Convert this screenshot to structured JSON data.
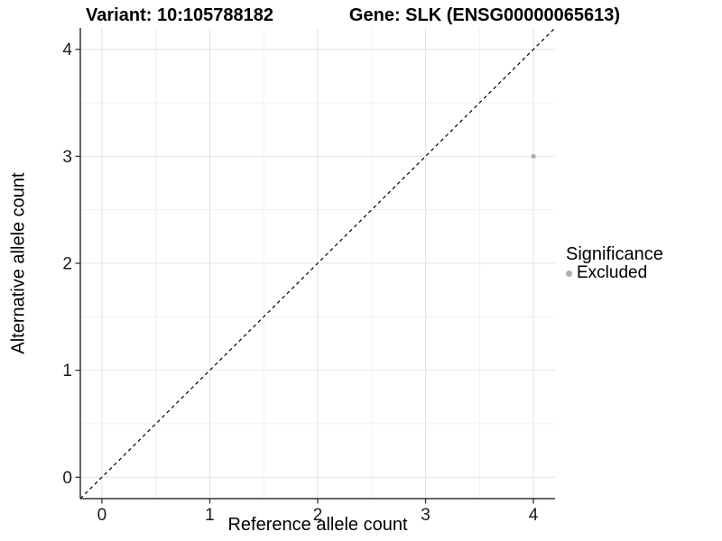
{
  "figure": {
    "title_left": "Variant: 10:105788182",
    "title_right": "Gene: SLK (ENSG00000065613)"
  },
  "chart_data": {
    "type": "scatter",
    "title_left": "Variant: 10:105788182",
    "title_right": "Gene: SLK (ENSG00000065613)",
    "xlabel": "Reference allele count",
    "ylabel": "Alternative allele count",
    "xlim": [
      -0.2,
      4.2
    ],
    "ylim": [
      -0.2,
      4.2
    ],
    "x_ticks": [
      0,
      1,
      2,
      3,
      4
    ],
    "y_ticks": [
      0,
      1,
      2,
      3,
      4
    ],
    "x_minor_ticks": [
      0.5,
      1.5,
      2.5,
      3.5
    ],
    "y_minor_ticks": [
      0.5,
      1.5,
      2.5,
      3.5
    ],
    "grid": true,
    "identity_line": {
      "style": "dashed",
      "color": "#000000"
    },
    "series": [
      {
        "name": "Excluded",
        "color": "#b1b1b1",
        "points": [
          {
            "x": 4,
            "y": 3
          }
        ]
      }
    ],
    "legend": {
      "title": "Significance",
      "position": "right",
      "items": [
        {
          "label": "Excluded",
          "color": "#b1b1b1"
        }
      ]
    },
    "colors": {
      "axis_line": "#333333",
      "tick_text": "#1a1a1a",
      "grid_major": "#e4e4e4",
      "grid_minor": "#f0f0f0",
      "background": "#ffffff"
    }
  }
}
